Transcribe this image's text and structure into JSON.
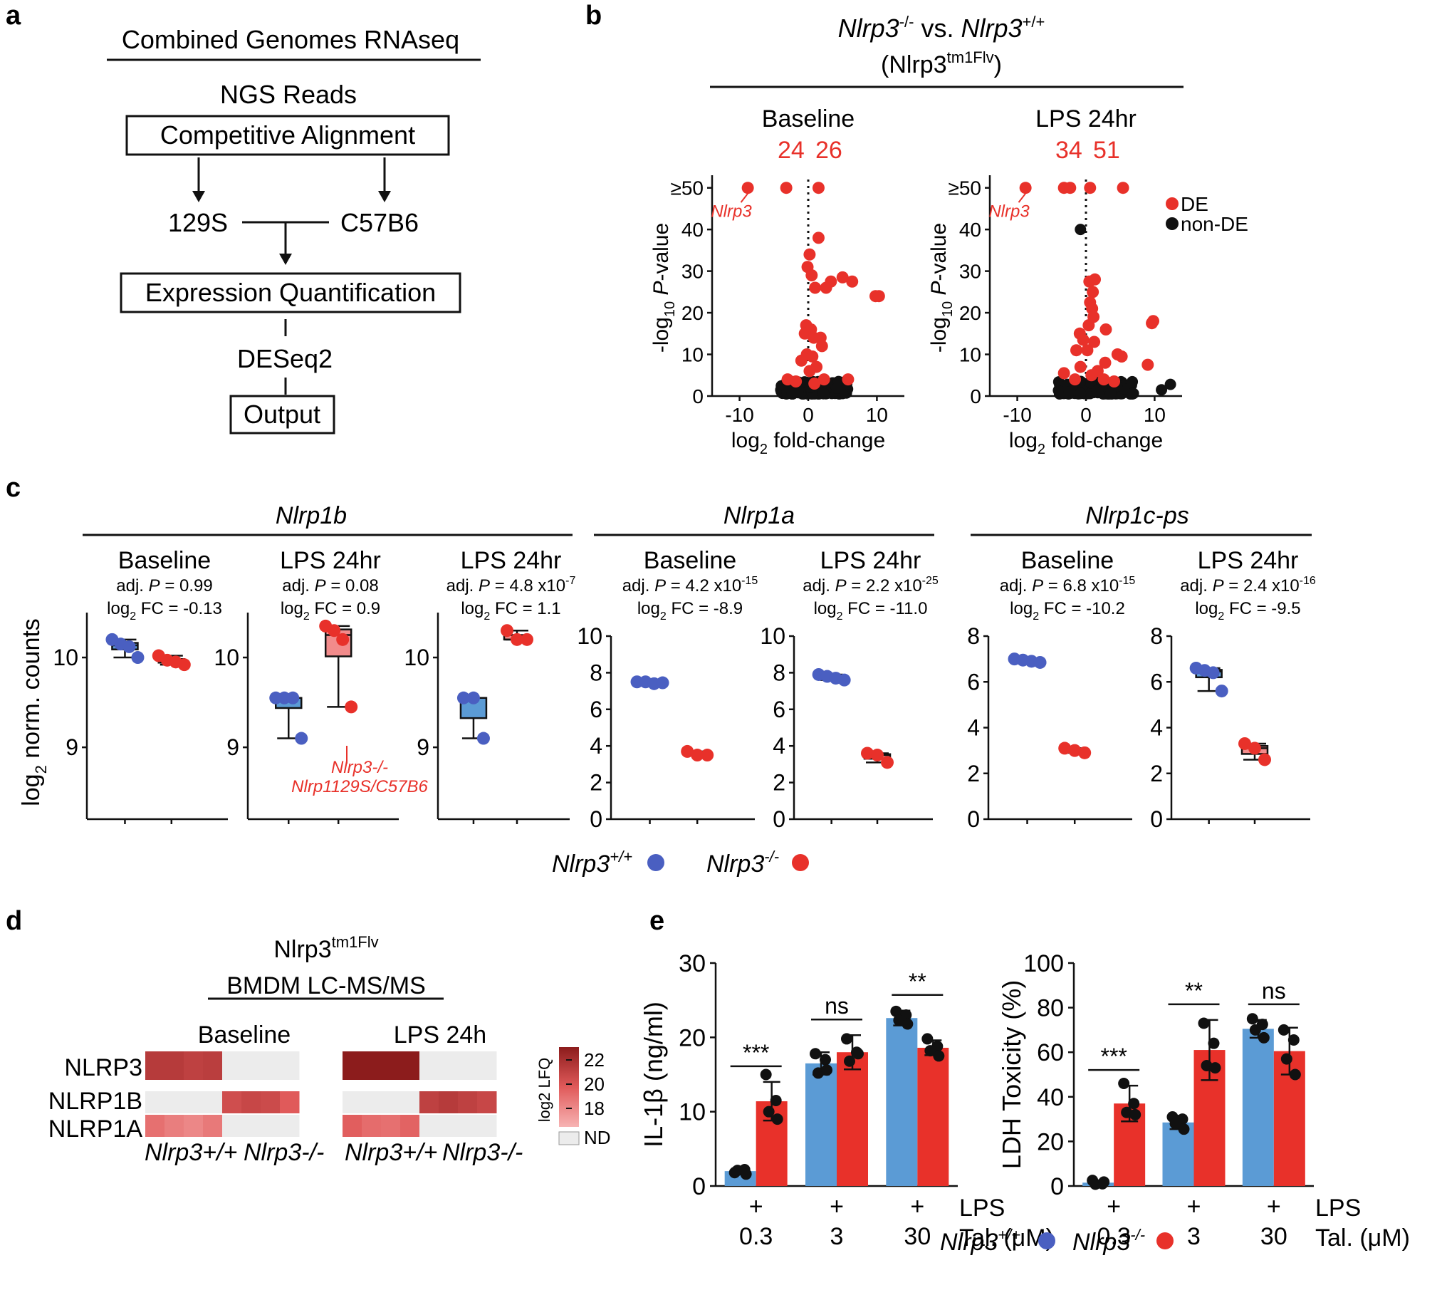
{
  "panel_a": {
    "label": "a",
    "title": "Combined Genomes RNAseq",
    "ngs": "NGS Reads",
    "competitive": "Competitive Alignment",
    "strain1": "129S",
    "strain2": "C57B6",
    "quant": "Expression Quantification",
    "deseq": "DESeq2",
    "output": "Output"
  },
  "panel_b": {
    "label": "b",
    "title_italic1": "Nlrp3",
    "title_sup1": "-/-",
    "title_vs": " vs. ",
    "title_italic2": "Nlrp3",
    "title_sup2": "+/+",
    "subtitle": "(Nlrp3",
    "subtitle_sup": "tm1Flv",
    "subtitle_close": ")",
    "legend_de": "DE",
    "legend_nonde": "non-DE",
    "colors": {
      "de": "#e8312a",
      "nonde": "#111111"
    }
  },
  "panel_c": {
    "label": "c",
    "genes": [
      "Nlrp1b",
      "Nlrp1a",
      "Nlrp1c-ps"
    ],
    "ylabel": "log2 norm. counts",
    "ylabel_main": "log",
    "ylabel_sub": "2",
    "ylabel_rest": " norm. counts",
    "annotation_line1": "Nlrp3-/-",
    "annotation_line2": "Nlrp1129S/C57B6",
    "legend_wt": "Nlrp3",
    "legend_wt_sup": "+/+",
    "legend_ko": "Nlrp3",
    "legend_ko_sup": "-/-",
    "colors": {
      "wt": "#4a5fc1",
      "wt_box": "#5b9bd5",
      "ko": "#e8312a",
      "ko_box": "#f28b8b"
    }
  },
  "panel_d": {
    "label": "d",
    "title": "Nlrp3",
    "title_sup": "tm1Flv",
    "subtitle": "BMDM LC-MS/MS",
    "cond1": "Baseline",
    "cond2": "LPS 24h",
    "rows": [
      "NLRP3",
      "NLRP1B",
      "NLRP1A"
    ],
    "geno_wt": "Nlrp3+/+",
    "geno_ko": "Nlrp3-/-",
    "legend_title": "log2 LFQ",
    "legend_ticks": [
      "22",
      "20",
      "18"
    ],
    "legend_nd": "ND"
  },
  "panel_e": {
    "label": "e",
    "lps": "LPS",
    "tal": "Tal. (μM)",
    "plus": "+",
    "legend_wt": "Nlrp3",
    "legend_wt_sup": "+/+",
    "legend_ko": "Nlrp3",
    "legend_ko_sup": "-/-"
  },
  "chart_data": [
    {
      "type": "scatter",
      "panel": "b",
      "title": "Baseline",
      "counts": {
        "down": "24",
        "up": "26"
      },
      "xlabel": "log2 fold-change",
      "ylabel": "-log10 P-value",
      "xlim": [
        -14,
        14
      ],
      "ylim": [
        0,
        52
      ],
      "xticks": [
        "-10",
        "0",
        "10"
      ],
      "yticks": [
        "0",
        "10",
        "20",
        "30",
        "40",
        "≥50"
      ],
      "gene_label": "Nlrp3",
      "de_points": [
        [
          -8.8,
          50
        ],
        [
          -3.2,
          50
        ],
        [
          1.5,
          50
        ],
        [
          1.5,
          38
        ],
        [
          0.2,
          34
        ],
        [
          -0.1,
          31
        ],
        [
          0.5,
          29
        ],
        [
          1.0,
          26
        ],
        [
          2.6,
          26
        ],
        [
          3.3,
          27.5
        ],
        [
          5.0,
          28.5
        ],
        [
          6.4,
          27.5
        ],
        [
          9.8,
          24
        ],
        [
          10.3,
          24
        ],
        [
          -0.3,
          17
        ],
        [
          0.4,
          16
        ],
        [
          -0.5,
          15
        ],
        [
          0.8,
          14
        ],
        [
          1.8,
          14
        ],
        [
          2.0,
          12
        ],
        [
          -0.2,
          10
        ],
        [
          0.6,
          9.5
        ],
        [
          -1.0,
          8.5
        ],
        [
          1.2,
          7
        ],
        [
          0.2,
          6
        ],
        [
          -3.0,
          4
        ],
        [
          2.3,
          4
        ],
        [
          5.8,
          4
        ],
        [
          -1.8,
          3.5
        ],
        [
          0.9,
          3
        ]
      ],
      "nonde_cloud": {
        "xmin": -4,
        "xmax": 6,
        "ymin": 0,
        "ymax": 3
      }
    },
    {
      "type": "scatter",
      "panel": "b",
      "title": "LPS 24hr",
      "counts": {
        "down": "34",
        "up": "51"
      },
      "xlabel": "log2 fold-change",
      "ylabel": "-log10 P-value",
      "xlim": [
        -14,
        14
      ],
      "ylim": [
        0,
        52
      ],
      "xticks": [
        "-10",
        "0",
        "10"
      ],
      "yticks": [
        "0",
        "10",
        "20",
        "30",
        "40",
        "≥50"
      ],
      "gene_label": "Nlrp3",
      "de_points": [
        [
          -8.8,
          50
        ],
        [
          -3.2,
          50
        ],
        [
          -2.3,
          50
        ],
        [
          0.6,
          50
        ],
        [
          5.4,
          50
        ],
        [
          0.5,
          27.5
        ],
        [
          1.3,
          28
        ],
        [
          1.0,
          25
        ],
        [
          0.6,
          22.5
        ],
        [
          0.9,
          21
        ],
        [
          1.1,
          19
        ],
        [
          0.4,
          17
        ],
        [
          9.8,
          18
        ],
        [
          9.6,
          17.5
        ],
        [
          2.9,
          16
        ],
        [
          -0.9,
          15
        ],
        [
          -0.4,
          13.5
        ],
        [
          1.2,
          13
        ],
        [
          -1.4,
          11
        ],
        [
          0.2,
          11
        ],
        [
          4.6,
          10
        ],
        [
          5.2,
          9.5
        ],
        [
          2.8,
          8
        ],
        [
          -0.8,
          7
        ],
        [
          1.7,
          6
        ],
        [
          -3.2,
          5.5
        ],
        [
          0.8,
          5
        ],
        [
          -1.6,
          4
        ],
        [
          2.6,
          4
        ],
        [
          4.1,
          3.5
        ],
        [
          9.0,
          7.5
        ]
      ],
      "de_outlier_black": [
        [
          -0.8,
          40
        ],
        [
          12.3,
          2.8
        ],
        [
          11.0,
          1.5
        ]
      ],
      "nonde_cloud": {
        "xmin": -4,
        "xmax": 7,
        "ymin": 0,
        "ymax": 3
      }
    },
    {
      "type": "box",
      "panel": "c",
      "gene": "Nlrp1b",
      "condition": "Baseline",
      "stats": [
        "adj. P = 0.99",
        "log2 FC = -0.13"
      ],
      "ylim": [
        8.2,
        10.5
      ],
      "yticks": [
        "9",
        "10"
      ],
      "wt": [
        10.2,
        10.15,
        10.12,
        10.0
      ],
      "ko": [
        10.02,
        9.97,
        9.95,
        9.92
      ]
    },
    {
      "type": "box",
      "panel": "c",
      "gene": "Nlrp1b",
      "condition": "LPS 24hr",
      "stats": [
        "adj. P = 0.08",
        "log2 FC = 0.9"
      ],
      "ylim": [
        8.2,
        10.5
      ],
      "yticks": [
        "10",
        "9"
      ],
      "wt": [
        9.55,
        9.55,
        9.55,
        9.1
      ],
      "ko": [
        10.35,
        10.3,
        10.2,
        9.45
      ]
    },
    {
      "type": "box",
      "panel": "c",
      "gene": "Nlrp1b",
      "condition": "LPS 24hr",
      "stats": [
        "adj. P = 4.8 x10-7",
        "log2 FC = 1.1"
      ],
      "ylim": [
        8.2,
        10.5
      ],
      "yticks": [
        "10",
        "9"
      ],
      "wt": [
        9.55,
        9.55,
        9.1
      ],
      "ko": [
        10.3,
        10.2,
        10.2
      ]
    },
    {
      "type": "box",
      "panel": "c",
      "gene": "Nlrp1a",
      "condition": "Baseline",
      "stats": [
        "adj. P = 4.2 x10-15",
        "log2 FC = -8.9"
      ],
      "ylim": [
        0,
        10
      ],
      "yticks": [
        "0",
        "2",
        "4",
        "6",
        "8",
        "10"
      ],
      "wt": [
        7.5,
        7.5,
        7.4,
        7.45
      ],
      "ko": [
        3.7,
        3.5,
        3.5
      ]
    },
    {
      "type": "box",
      "panel": "c",
      "gene": "Nlrp1a",
      "condition": "LPS 24hr",
      "stats": [
        "adj. P = 2.2 x10-25",
        "log2 FC = -11.0"
      ],
      "ylim": [
        0,
        10
      ],
      "yticks": [
        "0",
        "2",
        "4",
        "6",
        "8",
        "10"
      ],
      "wt": [
        7.9,
        7.8,
        7.7,
        7.6
      ],
      "ko": [
        3.6,
        3.5,
        3.1
      ]
    },
    {
      "type": "box",
      "panel": "c",
      "gene": "Nlrp1c-ps",
      "condition": "Baseline",
      "stats": [
        "adj. P = 6.8 x10-15",
        "log2 FC = -10.2"
      ],
      "ylim": [
        0,
        8
      ],
      "yticks": [
        "0",
        "2",
        "4",
        "6",
        "8"
      ],
      "wt": [
        7.0,
        6.95,
        6.9,
        6.85
      ],
      "ko": [
        3.1,
        3.0,
        2.9
      ]
    },
    {
      "type": "box",
      "panel": "c",
      "gene": "Nlrp1c-ps",
      "condition": "LPS 24hr",
      "stats": [
        "adj. P = 2.4 x10-16",
        "log2 FC = -9.5"
      ],
      "ylim": [
        0,
        8
      ],
      "yticks": [
        "0",
        "2",
        "4",
        "6",
        "8"
      ],
      "wt": [
        6.6,
        6.5,
        6.4,
        5.6
      ],
      "ko": [
        3.3,
        3.1,
        2.6
      ]
    },
    {
      "type": "heatmap",
      "panel": "d",
      "row_labels": [
        "NLRP3",
        "NLRP1B",
        "NLRP1A"
      ],
      "conditions": [
        "Baseline",
        "LPS 24h"
      ],
      "genotypes_per_condition": [
        "Nlrp3+/+",
        "Nlrp3-/-"
      ],
      "values_log2_lfq": [
        [
          21.0,
          21.0,
          20.8,
          20.9,
          null,
          null,
          null,
          null,
          22.3,
          22.5,
          22.4,
          22.6,
          null,
          null,
          null,
          null
        ],
        [
          null,
          null,
          null,
          null,
          20.4,
          20.6,
          20.5,
          20.0,
          null,
          null,
          null,
          null,
          20.8,
          21.0,
          20.8,
          20.6
        ],
        [
          19.5,
          19.2,
          19.0,
          19.3,
          null,
          null,
          null,
          null,
          19.9,
          19.6,
          19.5,
          19.8,
          null,
          null,
          null,
          null
        ]
      ],
      "scale": {
        "min": 18,
        "max": 22
      },
      "nd_color": "#ececec"
    },
    {
      "type": "bar",
      "panel": "e",
      "ylabel": "IL-1β (ng/ml)",
      "ylim": [
        0,
        30
      ],
      "yticks": [
        "0",
        "10",
        "20",
        "30"
      ],
      "categories": [
        "0.3",
        "3",
        "30"
      ],
      "series": [
        {
          "name": "Nlrp3+/+",
          "color": "#5b9bd5",
          "values": [
            2.0,
            16.5,
            22.6
          ],
          "errors": [
            0.4,
            1.5,
            1.0
          ],
          "points": [
            [
              1.8,
              2.2,
              2.1,
              1.6
            ],
            [
              17.8,
              17.0,
              15.2,
              15.6
            ],
            [
              23.5,
              23.0,
              22.3,
              21.8
            ]
          ]
        },
        {
          "name": "Nlrp3-/-",
          "color": "#e8312a",
          "values": [
            11.4,
            18.0,
            18.6
          ],
          "errors": [
            2.6,
            2.3,
            1.0
          ],
          "points": [
            [
              15.0,
              11.5,
              10.0,
              9.0
            ],
            [
              19.8,
              18.0,
              16.8,
              17.8
            ],
            [
              19.8,
              18.8,
              18.2,
              17.5
            ]
          ]
        }
      ],
      "significance": [
        "***",
        "ns",
        "**"
      ]
    },
    {
      "type": "bar",
      "panel": "e",
      "ylabel": "LDH Toxicity (%)",
      "ylim": [
        0,
        100
      ],
      "yticks": [
        "0",
        "20",
        "40",
        "60",
        "80",
        "100"
      ],
      "categories": [
        "0.3",
        "3",
        "30"
      ],
      "series": [
        {
          "name": "Nlrp3+/+",
          "color": "#5b9bd5",
          "values": [
            1.5,
            28.5,
            70.5
          ],
          "errors": [
            1.0,
            3.0,
            4.0
          ],
          "points": [
            [
              2.5,
              1.0,
              0.8,
              1.8
            ],
            [
              31.0,
              30.0,
              28.0,
              25.5
            ],
            [
              75.0,
              72.5,
              70.0,
              66.5
            ]
          ]
        },
        {
          "name": "Nlrp3-/-",
          "color": "#e8312a",
          "values": [
            37.0,
            61.0,
            60.5
          ],
          "errors": [
            8.0,
            13.5,
            10.5
          ],
          "points": [
            [
              46.0,
              37.0,
              33.0,
              32.0
            ],
            [
              73.0,
              64.0,
              54.0,
              53.0
            ],
            [
              70.0,
              65.5,
              57.0,
              50.0
            ]
          ]
        }
      ],
      "significance": [
        "***",
        "**",
        "ns"
      ]
    }
  ]
}
